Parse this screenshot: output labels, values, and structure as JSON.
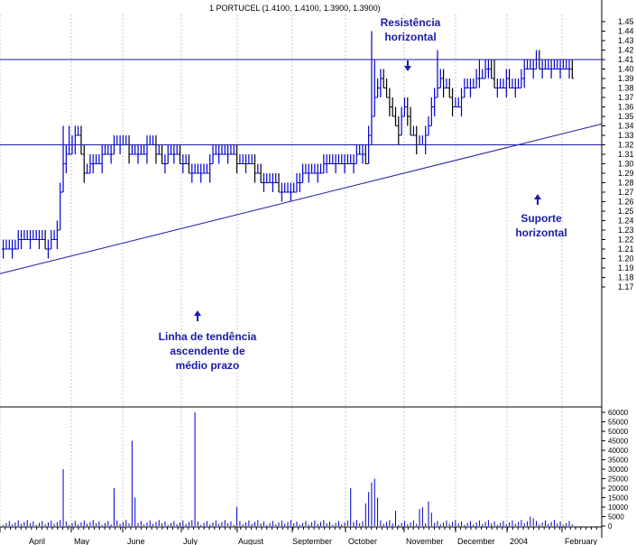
{
  "chart_data": {
    "type": "bar",
    "title": "1 PORTUCEL (1.4100, 1.4100, 1.3900, 1.3900)",
    "y_ticks": [
      "1.45",
      "1.44",
      "1.43",
      "1.42",
      "1.41",
      "1.40",
      "1.39",
      "1.38",
      "1.37",
      "1.36",
      "1.35",
      "1.34",
      "1.33",
      "1.32",
      "1.31",
      "1.30",
      "1.29",
      "1.28",
      "1.27",
      "1.26",
      "1.25",
      "1.24",
      "1.23",
      "1.22",
      "1.21",
      "1.20",
      "1.19",
      "1.18",
      "1.17"
    ],
    "volume_ticks": [
      "60000",
      "55000",
      "50000",
      "45000",
      "40000",
      "35000",
      "30000",
      "25000",
      "20000",
      "15000",
      "10000",
      "5000",
      "0"
    ],
    "x_ticks": [
      "April",
      "May",
      "June",
      "July",
      "August",
      "September",
      "October",
      "November",
      "December",
      "2004",
      "February"
    ],
    "price_range": [
      1.165,
      1.455
    ],
    "volume_range": [
      0,
      62000
    ],
    "resistance_level": 1.41,
    "support_level": 1.32,
    "trendline": {
      "start": 1.184,
      "end": 1.342
    },
    "price_anchors": [
      [
        0,
        1.21
      ],
      [
        8,
        1.22
      ],
      [
        13,
        1.22
      ],
      [
        15,
        1.21
      ],
      [
        18,
        1.23
      ],
      [
        20,
        1.3
      ],
      [
        23,
        1.32
      ],
      [
        25,
        1.33
      ],
      [
        27,
        1.29
      ],
      [
        31,
        1.3
      ],
      [
        35,
        1.31
      ],
      [
        39,
        1.32
      ],
      [
        43,
        1.31
      ],
      [
        47,
        1.31
      ],
      [
        49,
        1.32
      ],
      [
        53,
        1.3
      ],
      [
        56,
        1.31
      ],
      [
        60,
        1.3
      ],
      [
        63,
        1.29
      ],
      [
        68,
        1.29
      ],
      [
        70,
        1.31
      ],
      [
        76,
        1.31
      ],
      [
        79,
        1.3
      ],
      [
        82,
        1.3
      ],
      [
        84,
        1.29
      ],
      [
        87,
        1.28
      ],
      [
        90,
        1.28
      ],
      [
        93,
        1.27
      ],
      [
        96,
        1.27
      ],
      [
        98,
        1.28
      ],
      [
        101,
        1.29
      ],
      [
        105,
        1.29
      ],
      [
        109,
        1.3
      ],
      [
        112,
        1.3
      ],
      [
        116,
        1.3
      ],
      [
        119,
        1.31
      ],
      [
        121,
        1.3
      ],
      [
        122,
        1.33
      ],
      [
        124,
        1.37
      ],
      [
        126,
        1.39
      ],
      [
        128,
        1.37
      ],
      [
        130,
        1.35
      ],
      [
        132,
        1.33
      ],
      [
        134,
        1.36
      ],
      [
        136,
        1.33
      ],
      [
        138,
        1.32
      ],
      [
        140,
        1.32
      ],
      [
        142,
        1.34
      ],
      [
        144,
        1.37
      ],
      [
        146,
        1.39
      ],
      [
        148,
        1.38
      ],
      [
        150,
        1.36
      ],
      [
        152,
        1.36
      ],
      [
        154,
        1.38
      ],
      [
        156,
        1.38
      ],
      [
        158,
        1.39
      ],
      [
        160,
        1.39
      ],
      [
        162,
        1.4
      ],
      [
        164,
        1.38
      ],
      [
        166,
        1.38
      ],
      [
        168,
        1.39
      ],
      [
        170,
        1.38
      ],
      [
        172,
        1.38
      ],
      [
        174,
        1.4
      ],
      [
        176,
        1.4
      ],
      [
        178,
        1.41
      ],
      [
        180,
        1.4
      ],
      [
        183,
        1.4
      ],
      [
        186,
        1.4
      ],
      [
        189,
        1.4
      ],
      [
        190,
        1.39
      ]
    ],
    "price_spikes": [
      [
        20,
        1.34
      ],
      [
        22,
        1.34
      ],
      [
        123,
        1.44
      ],
      [
        124,
        1.41
      ],
      [
        145,
        1.42
      ],
      [
        159,
        1.41
      ],
      [
        164,
        1.41
      ]
    ],
    "volume_spikes": [
      [
        20,
        30000
      ],
      [
        37,
        20000
      ],
      [
        43,
        45000
      ],
      [
        44,
        15000
      ],
      [
        64,
        60000
      ],
      [
        78,
        10000
      ],
      [
        116,
        20000
      ],
      [
        121,
        12000
      ],
      [
        122,
        18000
      ],
      [
        123,
        23000
      ],
      [
        124,
        25000
      ],
      [
        125,
        15000
      ],
      [
        131,
        8000
      ],
      [
        139,
        9000
      ],
      [
        140,
        10000
      ],
      [
        142,
        13000
      ],
      [
        143,
        7000
      ],
      [
        176,
        5000
      ],
      [
        177,
        4000
      ]
    ],
    "annotations": {
      "resistance": [
        "Resistência",
        "horizontal"
      ],
      "support": [
        "Suporte",
        "horizontal"
      ],
      "trend": [
        "Linha de tendência",
        "ascendente de",
        "médio prazo"
      ]
    },
    "colors": {
      "lines": "#1a1aa8",
      "up_bars": "#0000cc",
      "down_bars": "#000000",
      "grid": "#c8c8c8"
    }
  }
}
